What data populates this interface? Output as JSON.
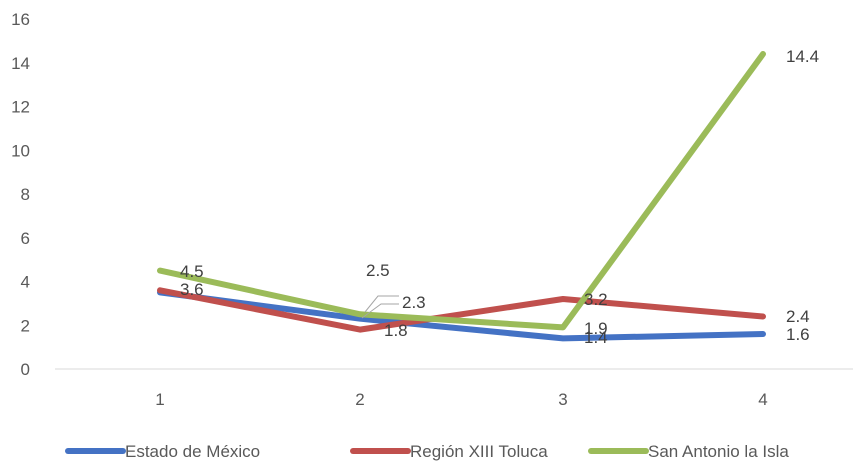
{
  "chart_data": {
    "type": "line",
    "title": "",
    "xlabel": "",
    "ylabel": "",
    "categories": [
      "1",
      "2",
      "3",
      "4"
    ],
    "ylim": [
      0,
      16
    ],
    "yticks": [
      0,
      2,
      4,
      6,
      8,
      10,
      12,
      14,
      16
    ],
    "grid": false,
    "legend": "bottom",
    "series": [
      {
        "name": "Estado de México",
        "color": "#4472C4",
        "values": [
          3.5,
          2.3,
          1.4,
          1.6
        ],
        "labels": [
          "",
          "2.3",
          "1.4",
          "1.6"
        ]
      },
      {
        "name": "Región XIII Toluca",
        "color": "#C0504D",
        "values": [
          3.6,
          1.8,
          3.2,
          2.4
        ],
        "labels": [
          "3.6",
          "1.8",
          "3.2",
          "2.4"
        ]
      },
      {
        "name": "San Antonio la Isla",
        "color": "#9BBB59",
        "values": [
          4.5,
          2.5,
          1.9,
          14.4
        ],
        "labels": [
          "4.5",
          "2.5",
          "1.9",
          "14.4"
        ]
      }
    ]
  }
}
